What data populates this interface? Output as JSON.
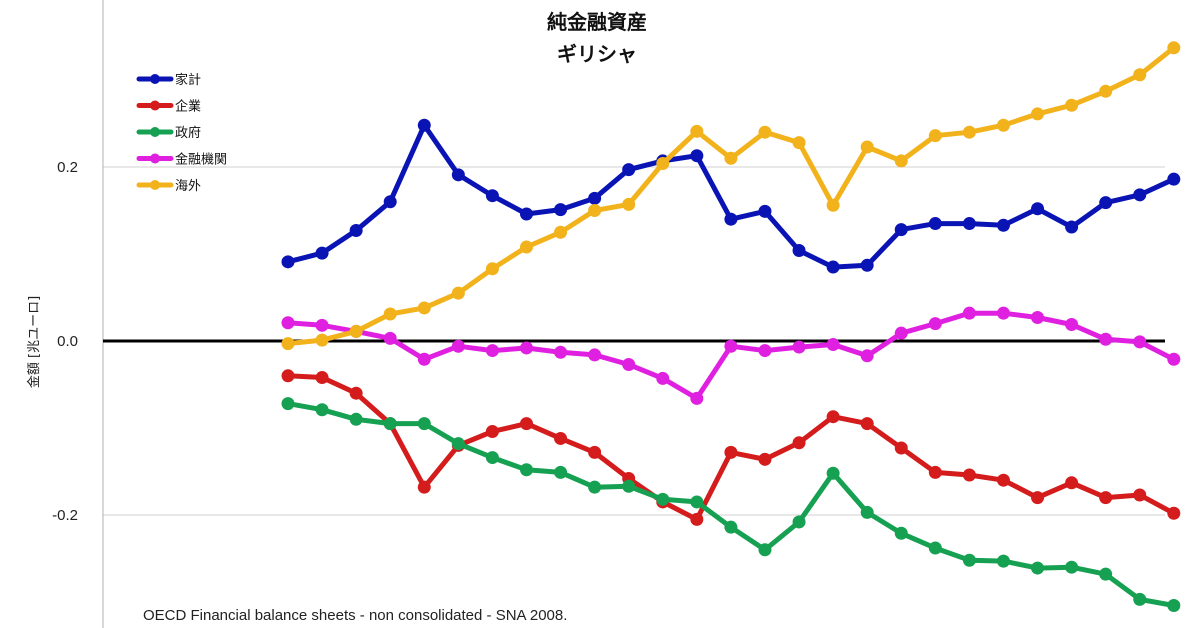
{
  "chart_data": {
    "type": "line",
    "title": "純金融資産",
    "subtitle": "ギリシャ",
    "ylabel": "金額 [兆ユーロ]",
    "ylim": [
      -0.3,
      0.4
    ],
    "yticks": [
      {
        "value": 0.2,
        "label": "0.2"
      },
      {
        "value": 0.0,
        "label": "0.0"
      },
      {
        "value": -0.2,
        "label": "-0.2"
      }
    ],
    "grid": true,
    "legend_position": "top-left",
    "source": "OECD Financial balance sheets - non consolidated - SNA 2008.",
    "series": [
      {
        "name": "家計",
        "color": "#0a14b4",
        "values": [
          0.091,
          0.101,
          0.127,
          0.16,
          0.248,
          0.191,
          0.167,
          0.146,
          0.151,
          0.164,
          0.197,
          0.207,
          0.213,
          0.14,
          0.149,
          0.104,
          0.085,
          0.087,
          0.128,
          0.135,
          0.135,
          0.133,
          0.152,
          0.131,
          0.159,
          0.168,
          0.186
        ]
      },
      {
        "name": "企業",
        "color": "#d41c1c",
        "values": [
          -0.04,
          -0.042,
          -0.06,
          -0.095,
          -0.168,
          -0.12,
          -0.104,
          -0.095,
          -0.112,
          -0.128,
          -0.158,
          -0.185,
          -0.205,
          -0.128,
          -0.136,
          -0.117,
          -0.087,
          -0.095,
          -0.123,
          -0.151,
          -0.154,
          -0.16,
          -0.18,
          -0.163,
          -0.18,
          -0.177,
          -0.198
        ]
      },
      {
        "name": "政府",
        "color": "#16a052",
        "values": [
          -0.072,
          -0.079,
          -0.09,
          -0.095,
          -0.095,
          -0.118,
          -0.134,
          -0.148,
          -0.151,
          -0.168,
          -0.167,
          -0.182,
          -0.185,
          -0.214,
          -0.24,
          -0.208,
          -0.152,
          -0.197,
          -0.221,
          -0.238,
          -0.252,
          -0.253,
          -0.261,
          -0.26,
          -0.268,
          -0.297,
          -0.304
        ]
      },
      {
        "name": "金融機関",
        "color": "#e020e0",
        "values": [
          0.021,
          0.018,
          0.011,
          0.003,
          -0.021,
          -0.006,
          -0.011,
          -0.008,
          -0.013,
          -0.016,
          -0.027,
          -0.043,
          -0.066,
          -0.006,
          -0.011,
          -0.007,
          -0.004,
          -0.017,
          0.009,
          0.02,
          0.032,
          0.032,
          0.027,
          0.019,
          0.002,
          -0.001,
          -0.021
        ]
      },
      {
        "name": "海外",
        "color": "#f2b21c",
        "values": [
          -0.003,
          0.001,
          0.011,
          0.031,
          0.038,
          0.055,
          0.083,
          0.108,
          0.125,
          0.15,
          0.157,
          0.204,
          0.241,
          0.21,
          0.24,
          0.228,
          0.156,
          0.223,
          0.207,
          0.236,
          0.24,
          0.248,
          0.261,
          0.271,
          0.287,
          0.306,
          0.337
        ]
      }
    ]
  }
}
